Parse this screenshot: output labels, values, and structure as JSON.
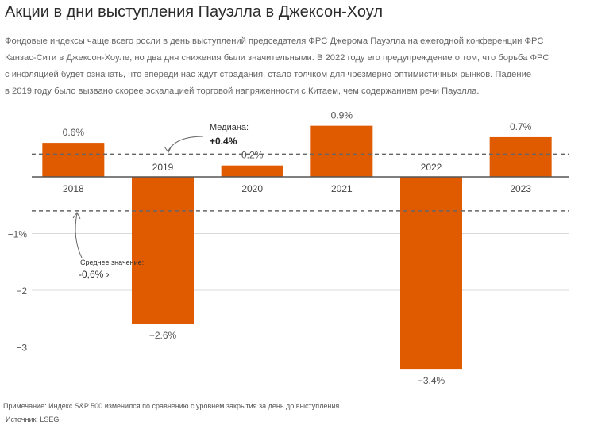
{
  "header": {
    "title": "Акции в дни выступления Пауэлла в Джексон-Хоул",
    "subtitle_lines": [
      "Фондовые индексы чаще всего росли в день выступлений председателя ФРС Джерома Пауэлла на ежегодной конференции ФРС",
      "Канзас-Сити в Джексон-Хоуле, но два дня снижения были значительными. В 2022 году его предупреждение о том, что борьба ФРС",
      "с инфляцией будет означать, что впереди нас ждут страдания, стало толчком для чрезмерно оптимистичных рынков. Падение",
      "в 2019 году было вызвано скорее эскалацией торговой напряженности с Китаем, чем содержанием речи Пауэлла."
    ]
  },
  "chart_data": {
    "type": "bar",
    "categories": [
      "2018",
      "2019",
      "2020",
      "2021",
      "2022",
      "2023"
    ],
    "values": [
      0.6,
      -2.6,
      0.2,
      0.9,
      -3.4,
      0.7
    ],
    "value_labels": [
      "0.6%",
      "−2.6%",
      "0.2%",
      "0.9%",
      "−3.4%",
      "0.7%"
    ],
    "ylim": [
      -3.6,
      1.2
    ],
    "yticks": [
      -1,
      -2,
      -3
    ],
    "ytick_labels": [
      "−1%",
      "−2",
      "−3"
    ],
    "bar_color": "#e05a00",
    "reference_lines": [
      {
        "name": "median",
        "value": 0.4,
        "label": "Медиана:",
        "value_label": "+0.4%"
      },
      {
        "name": "mean",
        "value": -0.6,
        "label": "Среднее значение:",
        "value_label": "-0,6% ›"
      }
    ]
  },
  "footer": {
    "note": "Примечание: Индекс S&P 500 изменился по сравнению с уровнем закрытия за день до выступления.",
    "source": "Источник: LSEG"
  }
}
